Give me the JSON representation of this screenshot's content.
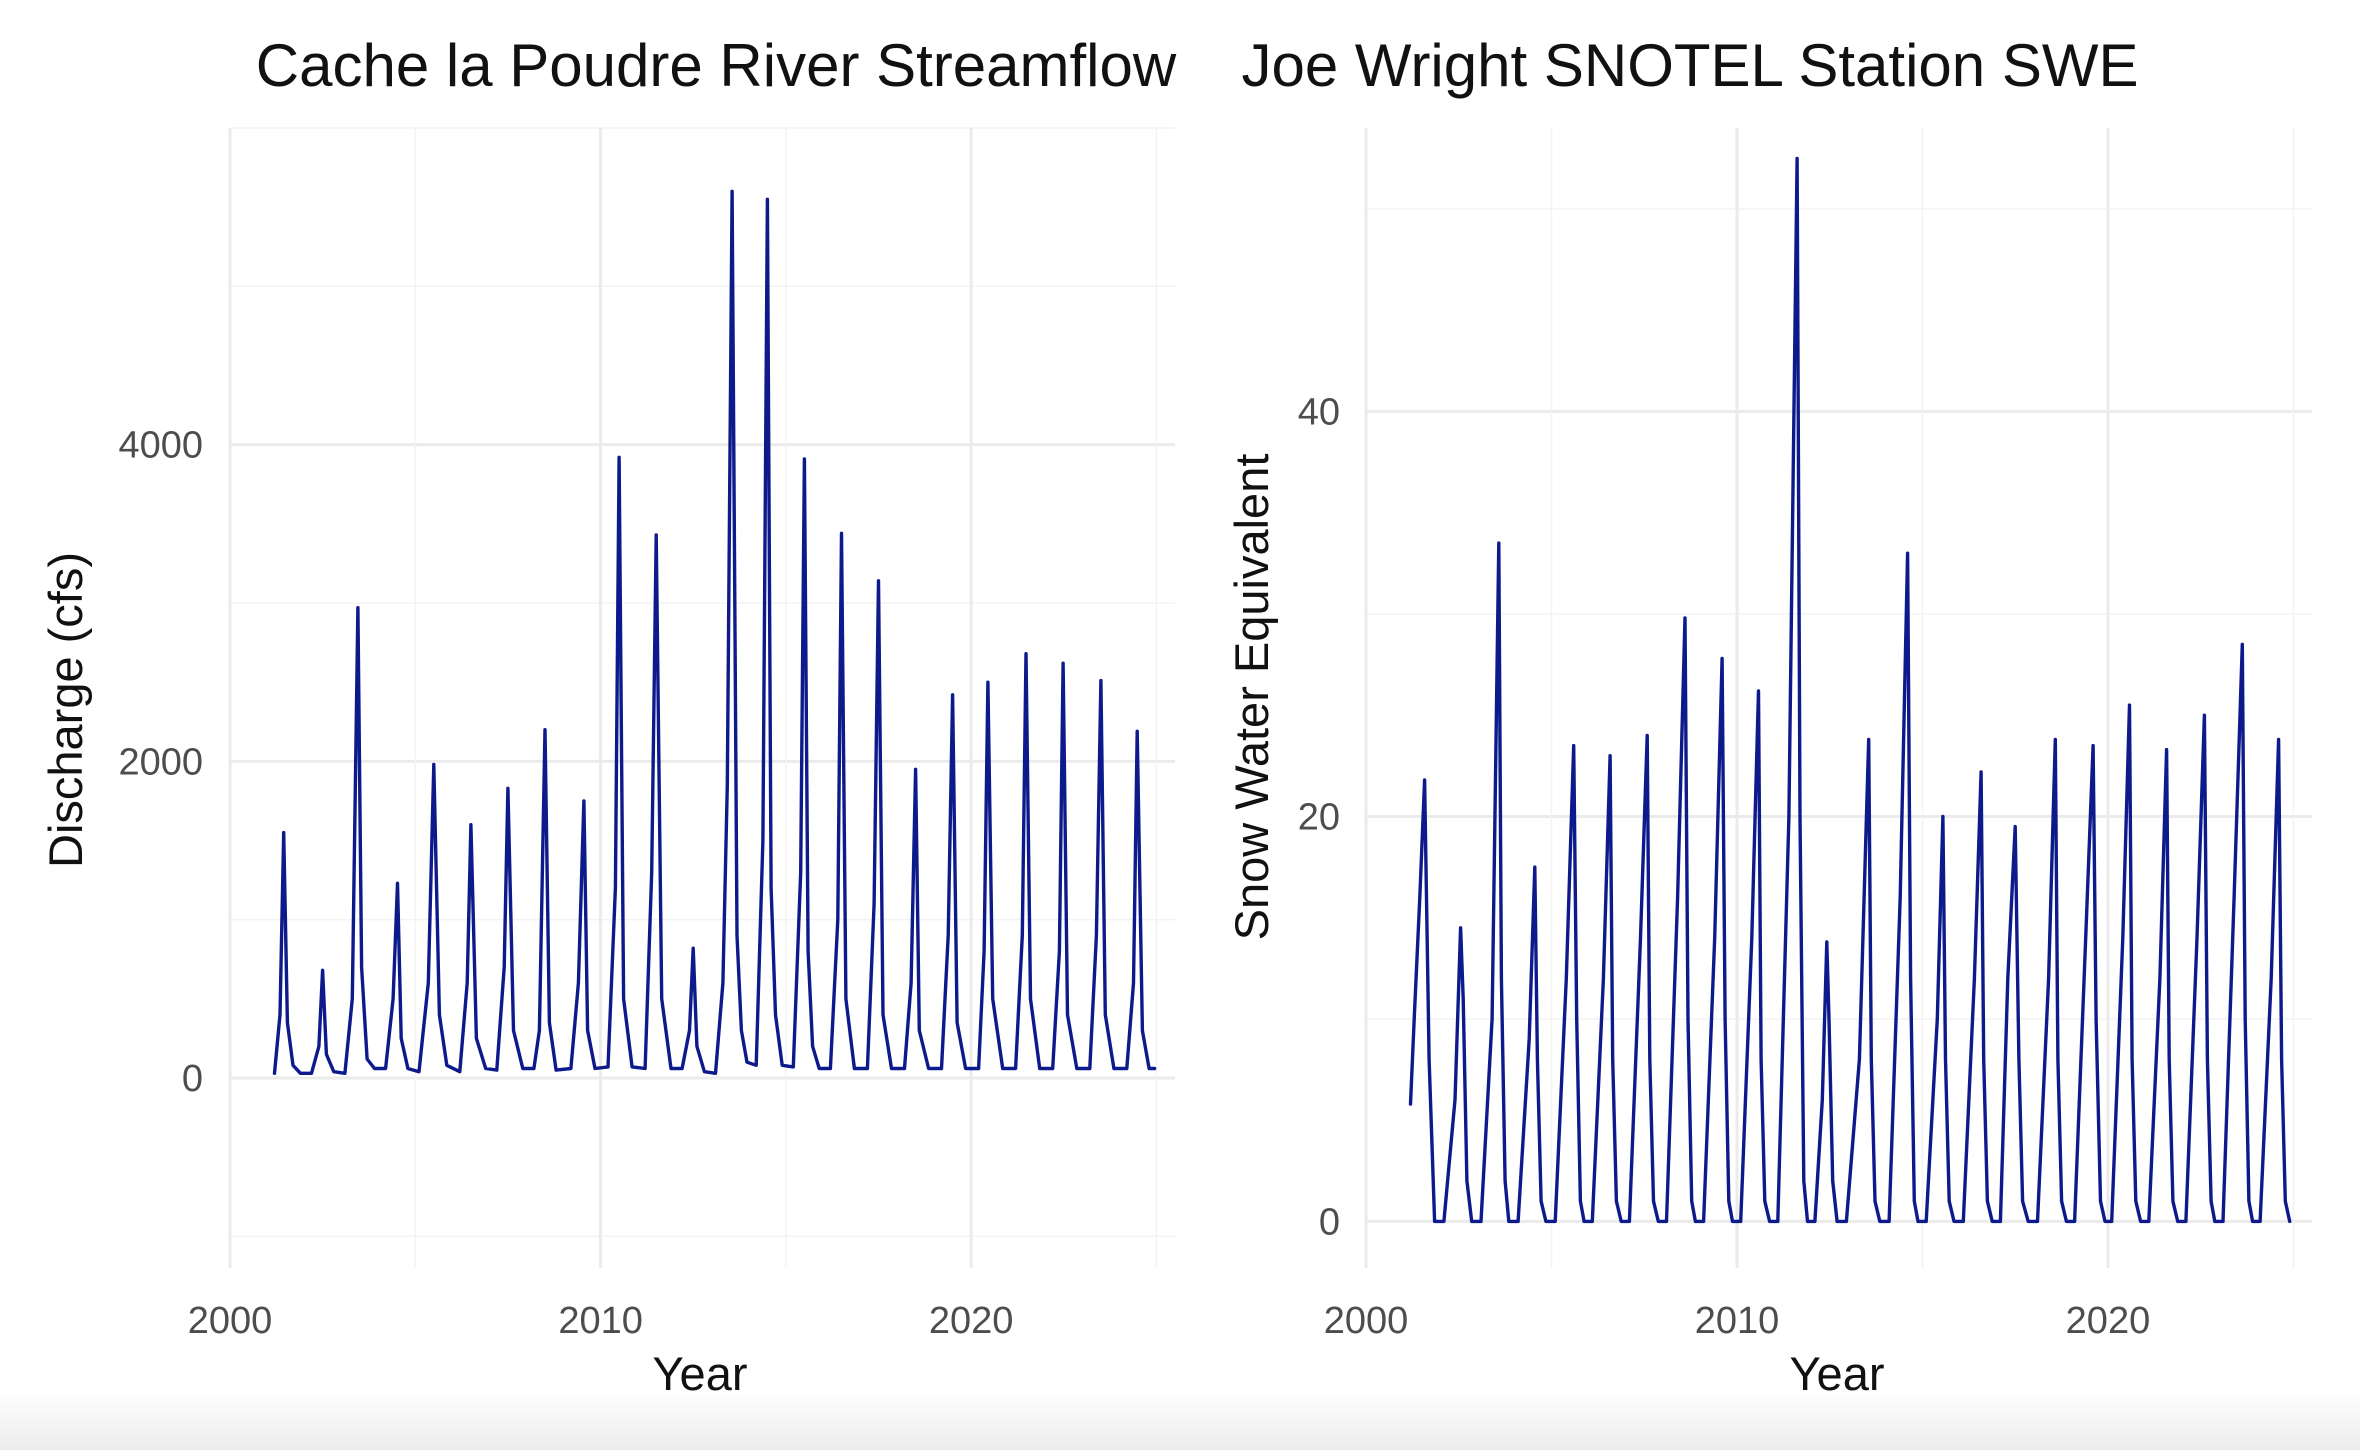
{
  "chart_data": [
    {
      "type": "line",
      "title": "Cache la Poudre River Streamflow",
      "xlabel": "Year",
      "ylabel": "Discharge (cfs)",
      "xlim": [
        2000,
        2025.5
      ],
      "ylim": [
        -1200,
        6000
      ],
      "x_ticks": [
        2000,
        2010,
        2020
      ],
      "x_tick_labels": [
        "2000",
        "2010",
        "2020"
      ],
      "y_ticks": [
        0,
        2000,
        4000
      ],
      "y_tick_labels": [
        "0",
        "2000",
        "4000"
      ],
      "grid": true,
      "line_color": "#0d1a8c",
      "series": [
        {
          "x": [
            2001.2,
            2001.35,
            2001.45,
            2001.55,
            2001.7,
            2001.9,
            2002.2,
            2002.4,
            2002.5,
            2002.6,
            2002.8,
            2003.1,
            2003.3,
            2003.45,
            2003.55,
            2003.7,
            2003.9,
            2004.2,
            2004.4,
            2004.52,
            2004.62,
            2004.8,
            2005.1,
            2005.35,
            2005.5,
            2005.65,
            2005.85,
            2006.2,
            2006.4,
            2006.5,
            2006.65,
            2006.9,
            2007.2,
            2007.4,
            2007.5,
            2007.65,
            2007.9,
            2008.2,
            2008.35,
            2008.5,
            2008.62,
            2008.8,
            2009.2,
            2009.4,
            2009.55,
            2009.65,
            2009.85,
            2010.2,
            2010.4,
            2010.5,
            2010.62,
            2010.85,
            2011.2,
            2011.38,
            2011.5,
            2011.65,
            2011.9,
            2012.2,
            2012.4,
            2012.5,
            2012.6,
            2012.8,
            2013.1,
            2013.3,
            2013.42,
            2013.55,
            2013.68,
            2013.8,
            2013.95,
            2014.2,
            2014.38,
            2014.5,
            2014.6,
            2014.72,
            2014.9,
            2015.2,
            2015.4,
            2015.5,
            2015.6,
            2015.72,
            2015.9,
            2016.2,
            2016.4,
            2016.5,
            2016.62,
            2016.85,
            2017.2,
            2017.38,
            2017.5,
            2017.62,
            2017.85,
            2018.2,
            2018.38,
            2018.5,
            2018.6,
            2018.85,
            2019.2,
            2019.38,
            2019.5,
            2019.62,
            2019.85,
            2020.2,
            2020.35,
            2020.45,
            2020.58,
            2020.85,
            2021.2,
            2021.38,
            2021.48,
            2021.6,
            2021.85,
            2022.2,
            2022.38,
            2022.48,
            2022.6,
            2022.85,
            2023.2,
            2023.38,
            2023.5,
            2023.62,
            2023.85,
            2024.2,
            2024.38,
            2024.48,
            2024.62,
            2024.8,
            2024.95
          ],
          "y": [
            30,
            400,
            1550,
            350,
            80,
            30,
            30,
            200,
            680,
            150,
            40,
            30,
            500,
            2970,
            700,
            120,
            60,
            60,
            500,
            1230,
            250,
            60,
            40,
            600,
            1980,
            400,
            80,
            40,
            600,
            1600,
            250,
            60,
            50,
            700,
            1830,
            300,
            60,
            60,
            300,
            2200,
            350,
            50,
            60,
            600,
            1750,
            300,
            60,
            70,
            1200,
            3920,
            500,
            70,
            60,
            1300,
            3430,
            500,
            60,
            60,
            300,
            820,
            200,
            40,
            30,
            600,
            1850,
            5600,
            900,
            300,
            100,
            80,
            1500,
            5550,
            1200,
            400,
            80,
            70,
            1300,
            3910,
            800,
            200,
            60,
            60,
            1000,
            3440,
            500,
            60,
            60,
            1100,
            3140,
            400,
            60,
            60,
            600,
            1950,
            300,
            60,
            60,
            900,
            2420,
            350,
            60,
            60,
            800,
            2500,
            500,
            60,
            60,
            900,
            2680,
            500,
            60,
            60,
            800,
            2620,
            400,
            60,
            60,
            900,
            2510,
            400,
            60,
            60,
            600,
            2190,
            300,
            60,
            60
          ]
        }
      ]
    },
    {
      "type": "line",
      "title": "Joe Wright SNOTEL Station SWE",
      "xlabel": "Year",
      "ylabel": "Snow Water Equivalent",
      "xlim": [
        2000,
        2025.5
      ],
      "ylim": [
        -2.3,
        54
      ],
      "x_ticks": [
        2000,
        2010,
        2020
      ],
      "x_tick_labels": [
        "2000",
        "2010",
        "2020"
      ],
      "y_ticks": [
        0,
        20,
        40
      ],
      "y_tick_labels": [
        "0",
        "20",
        "40"
      ],
      "grid": true,
      "line_color": "#0d1a8c",
      "series": [
        {
          "x": [
            2001.2,
            2001.3,
            2001.45,
            2001.58,
            2001.7,
            2001.85,
            2002.1,
            2002.4,
            2002.55,
            2002.62,
            2002.72,
            2002.85,
            2003.1,
            2003.4,
            2003.58,
            2003.65,
            2003.75,
            2003.85,
            2004.1,
            2004.4,
            2004.55,
            2004.62,
            2004.72,
            2004.85,
            2005.1,
            2005.4,
            2005.6,
            2005.68,
            2005.78,
            2005.88,
            2006.1,
            2006.4,
            2006.58,
            2006.65,
            2006.75,
            2006.88,
            2007.1,
            2007.4,
            2007.58,
            2007.65,
            2007.75,
            2007.88,
            2008.1,
            2008.4,
            2008.6,
            2008.68,
            2008.78,
            2008.88,
            2009.1,
            2009.4,
            2009.6,
            2009.68,
            2009.78,
            2009.88,
            2010.1,
            2010.4,
            2010.58,
            2010.65,
            2010.75,
            2010.88,
            2011.1,
            2011.4,
            2011.62,
            2011.7,
            2011.8,
            2011.9,
            2012.1,
            2012.3,
            2012.42,
            2012.48,
            2012.58,
            2012.7,
            2012.95,
            2013.3,
            2013.55,
            2013.62,
            2013.72,
            2013.85,
            2014.1,
            2014.4,
            2014.6,
            2014.68,
            2014.78,
            2014.88,
            2015.1,
            2015.4,
            2015.55,
            2015.62,
            2015.72,
            2015.85,
            2016.1,
            2016.4,
            2016.58,
            2016.65,
            2016.75,
            2016.88,
            2017.1,
            2017.3,
            2017.5,
            2017.6,
            2017.7,
            2017.85,
            2018.1,
            2018.4,
            2018.58,
            2018.65,
            2018.75,
            2018.88,
            2019.1,
            2019.4,
            2019.6,
            2019.68,
            2019.8,
            2019.92,
            2020.1,
            2020.4,
            2020.58,
            2020.65,
            2020.75,
            2020.88,
            2021.1,
            2021.4,
            2021.58,
            2021.65,
            2021.75,
            2021.88,
            2022.1,
            2022.4,
            2022.6,
            2022.68,
            2022.78,
            2022.88,
            2023.1,
            2023.4,
            2023.62,
            2023.7,
            2023.8,
            2023.9,
            2024.1,
            2024.4,
            2024.6,
            2024.68,
            2024.78,
            2024.9
          ],
          "y": [
            5.8,
            10,
            16,
            21.8,
            8,
            0,
            0,
            6,
            14.5,
            11,
            2,
            0,
            0,
            10,
            33.5,
            12,
            2,
            0,
            0,
            9,
            17.5,
            8,
            1,
            0,
            0,
            12,
            23.5,
            10,
            1,
            0,
            0,
            12,
            23,
            8,
            1,
            0,
            0,
            14,
            24,
            8,
            1,
            0,
            0,
            16,
            29.8,
            10,
            1,
            0,
            0,
            14,
            27.8,
            10,
            1,
            0,
            0,
            14,
            26.2,
            8,
            1,
            0,
            0,
            20,
            52.5,
            20,
            2,
            0,
            0,
            6,
            13.8,
            10,
            2,
            0,
            0,
            8,
            23.8,
            8,
            1,
            0,
            0,
            16,
            33,
            12,
            1,
            0,
            0,
            10,
            20,
            8,
            1,
            0,
            0,
            12,
            22.2,
            8,
            1,
            0,
            0,
            12,
            19.5,
            8,
            1,
            0,
            0,
            12,
            23.8,
            8,
            1,
            0,
            0,
            14,
            23.5,
            10,
            1,
            0,
            0,
            14,
            25.5,
            8,
            1,
            0,
            0,
            12,
            23.3,
            8,
            1,
            0,
            0,
            14,
            25,
            8,
            1,
            0,
            0,
            16,
            28.5,
            10,
            1,
            0,
            0,
            12,
            23.8,
            8,
            1,
            0
          ]
        }
      ]
    }
  ]
}
